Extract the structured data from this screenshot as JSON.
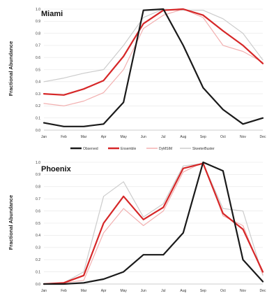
{
  "chart_data": [
    {
      "type": "line",
      "title": "Miami",
      "ylabel": "Fractional Abundance",
      "xlabel": "",
      "categories": [
        "Jan",
        "Feb",
        "Mar",
        "Apr",
        "May",
        "Jun",
        "Jul",
        "Aug",
        "Sep",
        "Oct",
        "Nov",
        "Dec"
      ],
      "ylim": [
        0,
        1
      ],
      "yticks": [
        "0.0",
        "0.1",
        "0.2",
        "0.3",
        "0.4",
        "0.5",
        "0.6",
        "0.7",
        "0.8",
        "0.9",
        "1.0"
      ],
      "grid": true,
      "legend": "below",
      "series": [
        {
          "name": "Observed",
          "color": "#1a1a1a",
          "values": [
            0.06,
            0.03,
            0.03,
            0.05,
            0.23,
            0.99,
            1.0,
            0.7,
            0.35,
            0.17,
            0.05,
            0.1
          ]
        },
        {
          "name": "Ensemble",
          "color": "#d62728",
          "values": [
            0.3,
            0.29,
            0.34,
            0.41,
            0.61,
            0.88,
            0.99,
            1.0,
            0.95,
            0.82,
            0.7,
            0.55
          ]
        },
        {
          "name": "DyMSIM",
          "color": "#f2b0b0",
          "values": [
            0.22,
            0.2,
            0.24,
            0.31,
            0.5,
            0.84,
            0.95,
            1.0,
            0.93,
            0.7,
            0.65,
            0.56
          ]
        },
        {
          "name": "SkeeterBuster",
          "color": "#cccccc",
          "values": [
            0.4,
            0.43,
            0.47,
            0.5,
            0.7,
            0.93,
            1.0,
            0.99,
            0.99,
            0.92,
            0.8,
            0.58
          ]
        }
      ]
    },
    {
      "type": "line",
      "title": "Phoenix",
      "ylabel": "Fractional Abundance",
      "xlabel": "",
      "categories": [
        "Jan",
        "Feb",
        "Mar",
        "Apr",
        "May",
        "Jun",
        "Jul",
        "Aug",
        "Sep",
        "Oct",
        "Nov",
        "Dec"
      ],
      "ylim": [
        0,
        1
      ],
      "yticks": [
        "0.0",
        "0.1",
        "0.2",
        "0.3",
        "0.4",
        "0.5",
        "0.6",
        "0.7",
        "0.8",
        "0.9",
        "1.0"
      ],
      "grid": true,
      "series": [
        {
          "name": "Observed",
          "color": "#1a1a1a",
          "values": [
            0.0,
            0.0,
            0.01,
            0.04,
            0.1,
            0.24,
            0.24,
            0.42,
            1.0,
            0.93,
            0.2,
            0.02
          ]
        },
        {
          "name": "Ensemble",
          "color": "#d62728",
          "values": [
            0.0,
            0.01,
            0.07,
            0.5,
            0.72,
            0.53,
            0.63,
            0.95,
            0.99,
            0.58,
            0.45,
            0.1
          ]
        },
        {
          "name": "DyMSIM",
          "color": "#f2b0b0",
          "values": [
            0.0,
            0.01,
            0.03,
            0.42,
            0.62,
            0.48,
            0.6,
            0.92,
            1.0,
            0.56,
            0.48,
            0.08
          ]
        },
        {
          "name": "SkeeterBuster",
          "color": "#cccccc",
          "values": [
            0.0,
            0.01,
            0.1,
            0.72,
            0.84,
            0.55,
            0.66,
            0.97,
            0.99,
            0.62,
            0.6,
            0.07
          ]
        }
      ]
    }
  ],
  "legend": {
    "items": [
      {
        "label": "Observed",
        "color": "#1a1a1a"
      },
      {
        "label": "Ensemble",
        "color": "#d62728"
      },
      {
        "label": "DyMSIM",
        "color": "#f2b0b0"
      },
      {
        "label": "SkeeterBuster",
        "color": "#cccccc"
      }
    ]
  }
}
